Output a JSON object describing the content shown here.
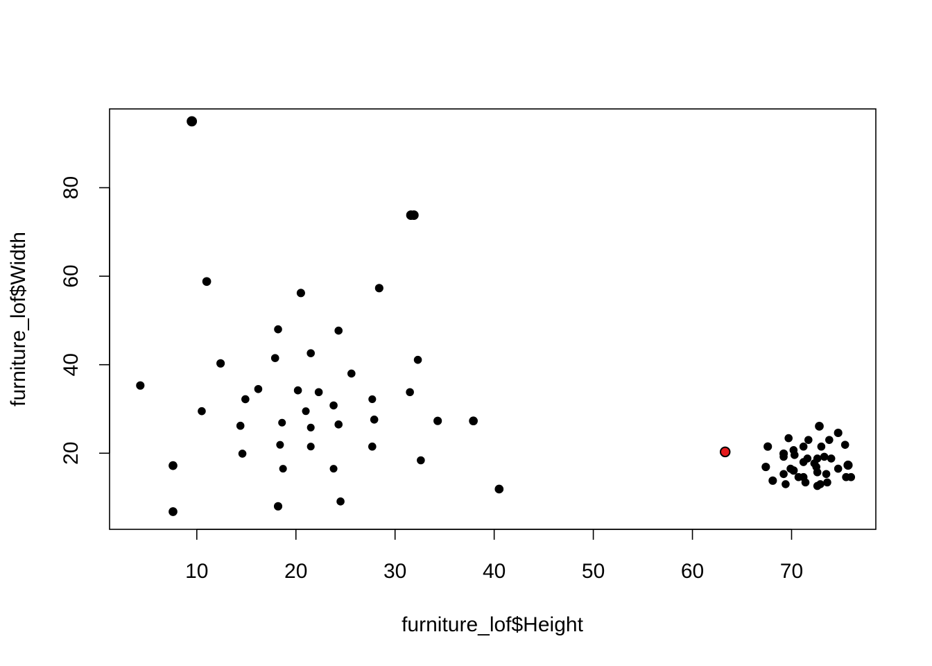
{
  "chart_data": {
    "type": "scatter",
    "title": "",
    "xlabel": "furniture_lof$Height",
    "ylabel": "furniture_lof$Width",
    "xlim": [
      1.2,
      78.5
    ],
    "ylim": [
      2.8,
      97.8
    ],
    "xticks": [
      10,
      20,
      30,
      40,
      50,
      60,
      70
    ],
    "yticks": [
      20,
      40,
      60,
      80
    ],
    "grid": false,
    "legend": "none",
    "colors": {
      "point": "#000000",
      "highlight": "#e41a1c"
    },
    "series": [
      {
        "points": [
          [
            9.5,
            95.0,
            1.3
          ],
          [
            31.6,
            73.8,
            1.2
          ],
          [
            31.9,
            73.8,
            1.2
          ],
          [
            11.0,
            58.8,
            1.1
          ],
          [
            28.4,
            57.3,
            1.05
          ],
          [
            20.5,
            56.2,
            1.05
          ],
          [
            18.2,
            48.0,
            1.0
          ],
          [
            24.3,
            47.7,
            1.0
          ],
          [
            21.5,
            42.6,
            1.0
          ],
          [
            17.9,
            41.5,
            1.0
          ],
          [
            32.3,
            41.1,
            1.0
          ],
          [
            12.4,
            40.3,
            1.05
          ],
          [
            25.6,
            38.0,
            1.0
          ],
          [
            4.3,
            35.3,
            1.05
          ],
          [
            16.2,
            34.5,
            1.0
          ],
          [
            20.2,
            34.2,
            1.0
          ],
          [
            22.3,
            33.8,
            1.0
          ],
          [
            31.5,
            33.8,
            1.0
          ],
          [
            14.9,
            32.2,
            1.0
          ],
          [
            27.7,
            32.2,
            0.95
          ],
          [
            23.8,
            30.8,
            1.0
          ],
          [
            10.5,
            29.5,
            1.0
          ],
          [
            21.0,
            29.5,
            0.95
          ],
          [
            27.9,
            27.6,
            1.0
          ],
          [
            34.3,
            27.3,
            1.05
          ],
          [
            37.9,
            27.3,
            1.1
          ],
          [
            18.6,
            26.9,
            0.95
          ],
          [
            24.3,
            26.5,
            1.0
          ],
          [
            14.4,
            26.2,
            1.0
          ],
          [
            21.5,
            25.8,
            0.95
          ],
          [
            18.4,
            21.9,
            0.95
          ],
          [
            21.5,
            21.5,
            0.95
          ],
          [
            27.7,
            21.5,
            1.0
          ],
          [
            14.6,
            19.9,
            1.0
          ],
          [
            32.6,
            18.4,
            1.0
          ],
          [
            7.6,
            17.2,
            1.1
          ],
          [
            18.7,
            16.5,
            0.95
          ],
          [
            23.8,
            16.5,
            0.95
          ],
          [
            40.5,
            11.9,
            1.1
          ],
          [
            24.5,
            9.1,
            1.0
          ],
          [
            18.2,
            8.0,
            1.05
          ],
          [
            7.6,
            6.8,
            1.1
          ],
          [
            72.8,
            26.1,
            1.1
          ],
          [
            74.7,
            24.6,
            1.05
          ],
          [
            69.7,
            23.4,
            1.0
          ],
          [
            73.8,
            23.0,
            1.0
          ],
          [
            71.7,
            23.0,
            1.0
          ],
          [
            75.4,
            21.9,
            1.0
          ],
          [
            67.6,
            21.5,
            1.05
          ],
          [
            71.2,
            21.5,
            1.0
          ],
          [
            73.0,
            21.5,
            1.0
          ],
          [
            70.2,
            20.7,
            1.0
          ],
          [
            69.2,
            19.9,
            1.05
          ],
          [
            70.3,
            19.6,
            1.0
          ],
          [
            69.2,
            19.2,
            1.0
          ],
          [
            73.3,
            19.2,
            1.0
          ],
          [
            74.0,
            18.8,
            1.0
          ],
          [
            71.6,
            18.8,
            1.0
          ],
          [
            72.6,
            18.8,
            1.0
          ],
          [
            71.2,
            18.0,
            1.0
          ],
          [
            72.3,
            17.7,
            1.0
          ],
          [
            75.7,
            17.3,
            1.15
          ],
          [
            67.4,
            16.9,
            1.05
          ],
          [
            72.5,
            16.9,
            1.0
          ],
          [
            69.9,
            16.5,
            1.0
          ],
          [
            74.7,
            16.5,
            1.0
          ],
          [
            70.2,
            16.1,
            1.05
          ],
          [
            72.6,
            15.7,
            1.0
          ],
          [
            73.5,
            15.3,
            1.0
          ],
          [
            69.2,
            15.3,
            1.0
          ],
          [
            70.7,
            14.6,
            1.0
          ],
          [
            71.2,
            14.6,
            1.0
          ],
          [
            75.5,
            14.6,
            1.0
          ],
          [
            76.0,
            14.6,
            1.0
          ],
          [
            68.1,
            13.8,
            1.05
          ],
          [
            71.4,
            13.4,
            1.0
          ],
          [
            73.6,
            13.4,
            1.0
          ],
          [
            69.4,
            13.0,
            1.0
          ],
          [
            72.6,
            12.6,
            1.0
          ],
          [
            72.9,
            13.0,
            1.0
          ],
          [
            63.3,
            20.3,
            1.25,
            "highlight"
          ]
        ]
      }
    ]
  }
}
